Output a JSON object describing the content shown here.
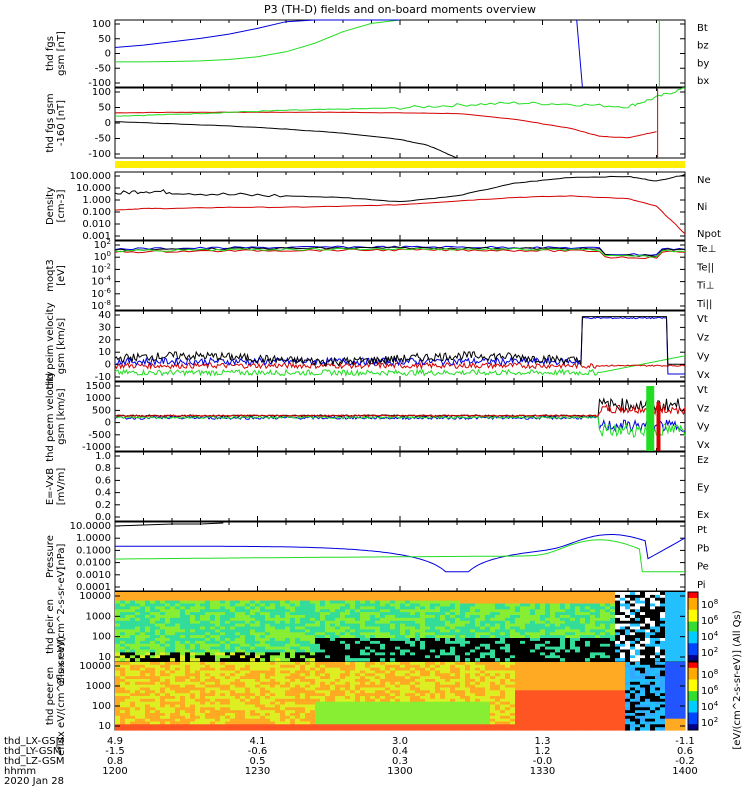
{
  "title": "P3 (TH-D) fields and on-board moments overview",
  "colors": {
    "black": "#000000",
    "red": "#d40000",
    "green": "#22dd22",
    "blue": "#0000dd",
    "yellow": "#ffee00"
  },
  "chart_data": [
    {
      "type": "line",
      "ylabel": "thd fgs gsm [nT]",
      "ylim": [
        -100,
        100
      ],
      "yticks": [
        "100",
        "50",
        "0",
        "-50",
        "-100"
      ],
      "legend": [
        "Bt",
        "bz",
        "by",
        "bx"
      ],
      "series": [
        {
          "name": "by",
          "x": [
            0,
            5,
            10,
            15,
            20,
            25,
            30,
            35,
            40,
            45,
            50
          ],
          "values": [
            -25,
            -25,
            -24,
            -22,
            -18,
            -10,
            5,
            30,
            65,
            90,
            100
          ]
        },
        {
          "name": "bx",
          "x": [
            0,
            5,
            10,
            15,
            20,
            25,
            30,
            35,
            40,
            45,
            50
          ],
          "values": [
            18,
            25,
            35,
            45,
            58,
            75,
            95,
            100,
            100,
            100,
            100
          ]
        }
      ]
    },
    {
      "type": "line",
      "ylabel": "thd fgs gsm -160 [nT]",
      "ylim": [
        -125,
        100
      ],
      "yticks": [
        "100",
        "50",
        "0",
        "-50",
        "-100"
      ],
      "series": [
        {
          "name": "bz",
          "x": [
            0,
            10,
            20,
            30,
            40,
            50,
            60,
            70,
            80,
            85,
            90,
            95
          ],
          "values": [
            20,
            22,
            22,
            22,
            22,
            20,
            18,
            0,
            -30,
            -55,
            -60,
            -40
          ]
        },
        {
          "name": "by",
          "x": [
            0,
            10,
            20,
            30,
            40,
            50,
            60,
            70,
            80,
            90,
            95,
            100
          ],
          "values": [
            10,
            15,
            22,
            28,
            32,
            36,
            45,
            52,
            48,
            40,
            70,
            100
          ]
        },
        {
          "name": "bx",
          "x": [
            0,
            10,
            20,
            30,
            40,
            50,
            55,
            60
          ],
          "values": [
            -8,
            -15,
            -22,
            -32,
            -45,
            -65,
            -85,
            -125
          ]
        }
      ]
    },
    {
      "type": "line",
      "ylabel": "Density [cm-3]",
      "yticks": [
        "100.000",
        "10.000",
        "1.000",
        "0.100",
        "0.010",
        "0.001"
      ],
      "legend": [
        "Ne",
        "Ni",
        "Npot"
      ],
      "series": [
        {
          "name": "Ni",
          "x": [
            0,
            5,
            10,
            20,
            30,
            40,
            50,
            60,
            70,
            80,
            90,
            95,
            100
          ],
          "values": [
            3,
            5,
            4,
            2.5,
            2,
            1.5,
            0.7,
            2,
            20,
            60,
            70,
            30,
            100
          ]
        },
        {
          "name": "Ne",
          "x": [
            0,
            5,
            10,
            20,
            30,
            40,
            50,
            60,
            70,
            80,
            90,
            95,
            100
          ],
          "values": [
            0.15,
            0.2,
            0.2,
            0.25,
            0.25,
            0.3,
            0.4,
            0.8,
            1.5,
            2,
            1.2,
            0.3,
            0.002
          ]
        }
      ]
    },
    {
      "type": "line",
      "ylabel": "moqt3 [eV]",
      "yticks": [
        "10^2",
        "10^0",
        "10^-2",
        "10^-4",
        "10^-6",
        "10^-8"
      ],
      "legend": [
        "Te⊥",
        "Te||",
        "Ti⊥",
        "Ti||"
      ]
    },
    {
      "type": "line",
      "ylabel": "thd peim velocity gsm [km/s]",
      "ylim": [
        -10,
        40
      ],
      "yticks": [
        "40",
        "30",
        "20",
        "10",
        "0",
        "-10"
      ],
      "legend": [
        "Vt",
        "Vz",
        "Vy",
        "Vx"
      ]
    },
    {
      "type": "line",
      "ylabel": "thd peem velocity gsm [km/s]",
      "ylim": [
        -1500,
        1500
      ],
      "yticks": [
        "1500",
        "1000",
        "500",
        "0",
        "-500",
        "-1000"
      ],
      "legend": [
        "Vt",
        "Vz",
        "Vy",
        "Vx"
      ]
    },
    {
      "type": "line",
      "ylabel": "E=-VxB [mV/m]",
      "ylim": [
        0,
        1
      ],
      "yticks": [
        "1.0",
        "0.8",
        "0.6",
        "0.4",
        "0.2",
        "0.0"
      ],
      "legend": [
        "Ez",
        "Ey",
        "Ex"
      ]
    },
    {
      "type": "line",
      "ylabel": "Pressure [nPa]",
      "yticks": [
        "10.0000",
        "1.0000",
        "0.1000",
        "0.0100",
        "0.0010",
        "0.0001"
      ],
      "legend": [
        "Pt",
        "Pb",
        "Pe",
        "Pi"
      ]
    },
    {
      "type": "heatmap",
      "ylabel": "thd peir en eflux eV/(cm^2-s-sr-eV)",
      "yticks": [
        "10000",
        "1000",
        "100",
        "10"
      ],
      "colorbar_ticks": [
        "10^8",
        "10^6",
        "10^4",
        "10^2"
      ]
    },
    {
      "type": "heatmap",
      "ylabel": "thd peer en eflux eV/(cm^2-s-sr-eV)",
      "yticks": [
        "10000",
        "1000",
        "100",
        "10"
      ],
      "colorbar_ticks": [
        "10^8",
        "10^6",
        "10^4",
        "10^2"
      ]
    }
  ],
  "colorbar_label": "[eV/(cm^2-s-sr-eV)] (All Qs)",
  "xaxis": {
    "row_labels": [
      "thd_LX-GSM",
      "thd_LY-GSM",
      "thd_LZ-GSM",
      "hhmm",
      "2020 Jan 28"
    ],
    "columns": [
      [
        "4.9",
        "-1.5",
        "0.8",
        "1200"
      ],
      [
        "4.1",
        "-0.6",
        "0.5",
        "1230"
      ],
      [
        "3.0",
        "0.4",
        "0.3",
        "1300"
      ],
      [
        "1.3",
        "1.2",
        "-0.0",
        "1330"
      ],
      [
        "-1.1",
        "0.6",
        "-0.2",
        "1400"
      ]
    ]
  }
}
